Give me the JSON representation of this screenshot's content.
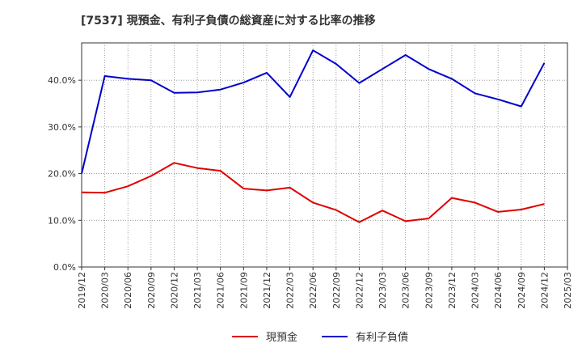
{
  "chart_data": {
    "type": "line",
    "title": "[7537]  現預金、有利子負債の総資産に対する比率の推移",
    "xlabel": "",
    "ylabel": "",
    "ylim": [
      0,
      48
    ],
    "yticks": [
      0,
      10,
      20,
      30,
      40
    ],
    "ytick_labels": [
      "0.0%",
      "10.0%",
      "20.0%",
      "30.0%",
      "40.0%"
    ],
    "categories": [
      "2019/12",
      "2020/03",
      "2020/06",
      "2020/09",
      "2020/12",
      "2021/03",
      "2021/06",
      "2021/09",
      "2021/12",
      "2022/03",
      "2022/06",
      "2022/09",
      "2022/12",
      "2023/03",
      "2023/06",
      "2023/09",
      "2023/12",
      "2024/03",
      "2024/06",
      "2024/09",
      "2024/12",
      "2025/03"
    ],
    "legend_position": "bottom-center",
    "grid": true,
    "series": [
      {
        "name": "現預金",
        "color": "#e00000",
        "values": [
          16.0,
          15.9,
          17.3,
          19.5,
          22.3,
          21.2,
          20.6,
          16.8,
          16.4,
          17.0,
          13.8,
          12.2,
          9.6,
          12.1,
          9.8,
          10.4,
          14.8,
          13.8,
          11.8,
          12.3,
          13.5,
          null
        ]
      },
      {
        "name": "有利子負債",
        "color": "#0000cc",
        "values": [
          20.0,
          40.9,
          40.3,
          40.0,
          37.3,
          37.4,
          38.0,
          39.5,
          41.6,
          36.4,
          46.4,
          43.5,
          39.4,
          42.4,
          45.4,
          42.4,
          40.3,
          37.2,
          35.9,
          34.4,
          43.7,
          null
        ]
      }
    ]
  }
}
